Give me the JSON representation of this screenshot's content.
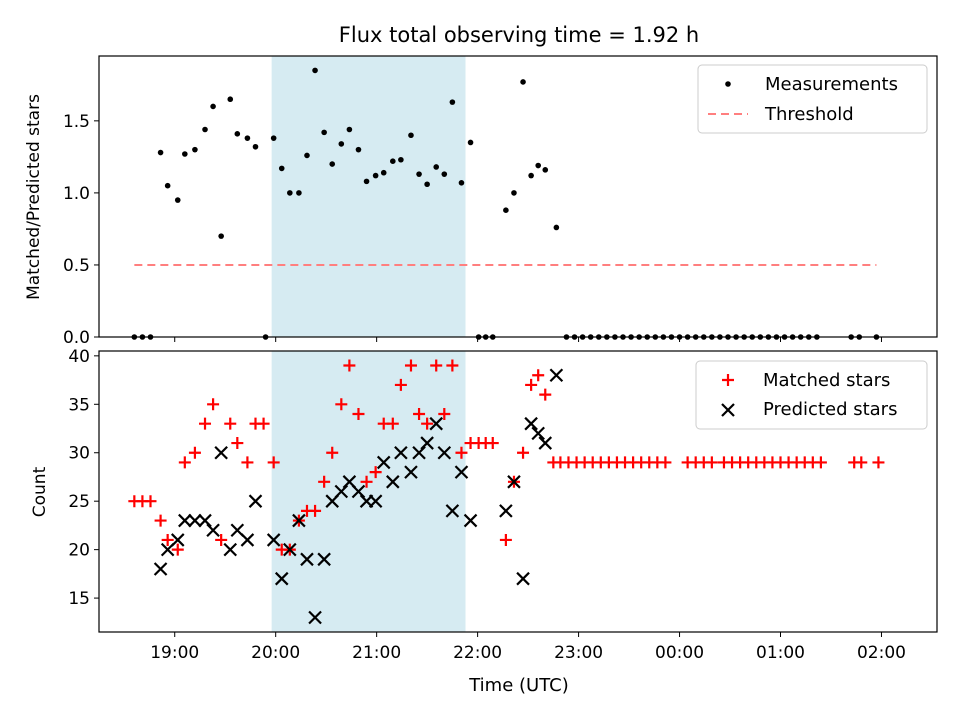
{
  "figure": {
    "title": "Flux total observing time = 1.92 h",
    "xlabel": "Time (UTC)",
    "highlight_color": "#add8e6",
    "highlight_span": [
      19.96,
      21.88
    ]
  },
  "chart_data": [
    {
      "type": "scatter",
      "title": "Flux total observing time = 1.92 h",
      "xlabel": "",
      "ylabel": "Matched/Predicted stars",
      "xlim": [
        18.25,
        26.55
      ],
      "ylim": [
        0,
        1.95
      ],
      "yticks": [
        0.0,
        0.5,
        1.0,
        1.5
      ],
      "ytick_labels": [
        "0.0",
        "0.5",
        "1.0",
        "1.5"
      ],
      "legend_placement": "top-right",
      "legend": [
        {
          "label": "Measurements",
          "marker": "dot",
          "color": "#000000"
        },
        {
          "label": "Threshold",
          "marker": "dashed-line",
          "color": "#ff7f7f"
        }
      ],
      "threshold": {
        "name": "Threshold",
        "value": 0.5,
        "x": [
          18.6,
          25.95
        ],
        "color": "#ff7f7f"
      },
      "series": [
        {
          "name": "Measurements",
          "color": "#000000",
          "points": [
            [
              18.6,
              0
            ],
            [
              18.68,
              0
            ],
            [
              18.76,
              0
            ],
            [
              18.86,
              1.28
            ],
            [
              18.93,
              1.05
            ],
            [
              19.03,
              0.95
            ],
            [
              19.1,
              1.27
            ],
            [
              19.2,
              1.3
            ],
            [
              19.3,
              1.44
            ],
            [
              19.38,
              1.6
            ],
            [
              19.46,
              0.7
            ],
            [
              19.55,
              1.65
            ],
            [
              19.62,
              1.41
            ],
            [
              19.72,
              1.38
            ],
            [
              19.8,
              1.32
            ],
            [
              19.9,
              0
            ],
            [
              19.98,
              1.38
            ],
            [
              20.06,
              1.17
            ],
            [
              20.14,
              1.0
            ],
            [
              20.23,
              1.0
            ],
            [
              20.31,
              1.26
            ],
            [
              20.39,
              1.85
            ],
            [
              20.48,
              1.42
            ],
            [
              20.56,
              1.2
            ],
            [
              20.65,
              1.34
            ],
            [
              20.73,
              1.44
            ],
            [
              20.82,
              1.3
            ],
            [
              20.9,
              1.08
            ],
            [
              20.99,
              1.12
            ],
            [
              21.07,
              1.14
            ],
            [
              21.16,
              1.22
            ],
            [
              21.24,
              1.23
            ],
            [
              21.34,
              1.4
            ],
            [
              21.42,
              1.13
            ],
            [
              21.5,
              1.06
            ],
            [
              21.59,
              1.18
            ],
            [
              21.67,
              1.13
            ],
            [
              21.75,
              1.63
            ],
            [
              21.84,
              1.07
            ],
            [
              21.93,
              1.35
            ],
            [
              22.01,
              0
            ],
            [
              22.08,
              0
            ],
            [
              22.15,
              0
            ],
            [
              22.28,
              0.88
            ],
            [
              22.36,
              1.0
            ],
            [
              22.45,
              1.77
            ],
            [
              22.53,
              1.12
            ],
            [
              22.6,
              1.19
            ],
            [
              22.67,
              1.16
            ],
            [
              22.78,
              0.76
            ],
            [
              22.88,
              0
            ],
            [
              22.96,
              0
            ],
            [
              23.04,
              0
            ],
            [
              23.12,
              0
            ],
            [
              23.2,
              0
            ],
            [
              23.28,
              0
            ],
            [
              23.36,
              0
            ],
            [
              23.44,
              0
            ],
            [
              23.52,
              0
            ],
            [
              23.6,
              0
            ],
            [
              23.68,
              0
            ],
            [
              23.76,
              0
            ],
            [
              23.84,
              0
            ],
            [
              23.92,
              0
            ],
            [
              24.0,
              0
            ],
            [
              24.08,
              0
            ],
            [
              24.16,
              0
            ],
            [
              24.24,
              0
            ],
            [
              24.32,
              0
            ],
            [
              24.4,
              0
            ],
            [
              24.48,
              0
            ],
            [
              24.56,
              0
            ],
            [
              24.64,
              0
            ],
            [
              24.72,
              0
            ],
            [
              24.8,
              0
            ],
            [
              24.88,
              0
            ],
            [
              24.96,
              0
            ],
            [
              25.04,
              0
            ],
            [
              25.12,
              0
            ],
            [
              25.2,
              0
            ],
            [
              25.28,
              0
            ],
            [
              25.36,
              0
            ],
            [
              25.7,
              0
            ],
            [
              25.78,
              0
            ],
            [
              25.95,
              0
            ]
          ]
        }
      ]
    },
    {
      "type": "scatter",
      "title": "",
      "xlabel": "Time (UTC)",
      "ylabel": "Count",
      "xlim": [
        18.25,
        26.55
      ],
      "ylim": [
        11.5,
        40.5
      ],
      "xticks": [
        19,
        20,
        21,
        22,
        23,
        24,
        25,
        26
      ],
      "xtick_labels": [
        "19:00",
        "20:00",
        "21:00",
        "22:00",
        "23:00",
        "00:00",
        "01:00",
        "02:00"
      ],
      "yticks": [
        15,
        20,
        25,
        30,
        35,
        40
      ],
      "ytick_labels": [
        "15",
        "20",
        "25",
        "30",
        "35",
        "40"
      ],
      "legend_placement": "top-right",
      "legend": [
        {
          "label": "Matched stars",
          "marker": "plus",
          "color": "#ff0000"
        },
        {
          "label": "Predicted stars",
          "marker": "x",
          "color": "#000000"
        }
      ],
      "series": [
        {
          "name": "Matched stars",
          "color": "#ff0000",
          "marker": "plus",
          "points": [
            [
              18.6,
              25
            ],
            [
              18.68,
              25
            ],
            [
              18.76,
              25
            ],
            [
              18.86,
              23
            ],
            [
              18.93,
              21
            ],
            [
              19.03,
              20
            ],
            [
              19.1,
              29
            ],
            [
              19.2,
              30
            ],
            [
              19.3,
              33
            ],
            [
              19.38,
              35
            ],
            [
              19.46,
              21
            ],
            [
              19.55,
              33
            ],
            [
              19.62,
              31
            ],
            [
              19.72,
              29
            ],
            [
              19.8,
              33
            ],
            [
              19.88,
              33
            ],
            [
              19.98,
              29
            ],
            [
              20.06,
              20
            ],
            [
              20.14,
              20
            ],
            [
              20.23,
              23
            ],
            [
              20.31,
              24
            ],
            [
              20.39,
              24
            ],
            [
              20.48,
              27
            ],
            [
              20.56,
              30
            ],
            [
              20.65,
              35
            ],
            [
              20.73,
              39
            ],
            [
              20.82,
              34
            ],
            [
              20.9,
              27
            ],
            [
              20.99,
              28
            ],
            [
              21.07,
              33
            ],
            [
              21.16,
              33
            ],
            [
              21.24,
              37
            ],
            [
              21.34,
              39
            ],
            [
              21.42,
              34
            ],
            [
              21.5,
              33
            ],
            [
              21.59,
              39
            ],
            [
              21.67,
              34
            ],
            [
              21.75,
              39
            ],
            [
              21.84,
              30
            ],
            [
              21.93,
              31
            ],
            [
              22.01,
              31
            ],
            [
              22.08,
              31
            ],
            [
              22.15,
              31
            ],
            [
              22.28,
              21
            ],
            [
              22.36,
              27
            ],
            [
              22.45,
              30
            ],
            [
              22.53,
              37
            ],
            [
              22.6,
              38
            ],
            [
              22.67,
              36
            ],
            [
              22.75,
              29
            ],
            [
              22.82,
              29
            ],
            [
              22.9,
              29
            ],
            [
              22.98,
              29
            ],
            [
              23.06,
              29
            ],
            [
              23.14,
              29
            ],
            [
              23.22,
              29
            ],
            [
              23.3,
              29
            ],
            [
              23.38,
              29
            ],
            [
              23.46,
              29
            ],
            [
              23.54,
              29
            ],
            [
              23.62,
              29
            ],
            [
              23.7,
              29
            ],
            [
              23.78,
              29
            ],
            [
              23.86,
              29
            ],
            [
              24.08,
              29
            ],
            [
              24.16,
              29
            ],
            [
              24.24,
              29
            ],
            [
              24.32,
              29
            ],
            [
              24.44,
              29
            ],
            [
              24.52,
              29
            ],
            [
              24.6,
              29
            ],
            [
              24.68,
              29
            ],
            [
              24.76,
              29
            ],
            [
              24.84,
              29
            ],
            [
              24.92,
              29
            ],
            [
              25.0,
              29
            ],
            [
              25.08,
              29
            ],
            [
              25.16,
              29
            ],
            [
              25.24,
              29
            ],
            [
              25.32,
              29
            ],
            [
              25.4,
              29
            ],
            [
              25.73,
              29
            ],
            [
              25.8,
              29
            ],
            [
              25.97,
              29
            ]
          ]
        },
        {
          "name": "Predicted stars",
          "color": "#000000",
          "marker": "x",
          "points": [
            [
              18.86,
              18
            ],
            [
              18.93,
              20
            ],
            [
              19.03,
              21
            ],
            [
              19.1,
              23
            ],
            [
              19.2,
              23
            ],
            [
              19.3,
              23
            ],
            [
              19.38,
              22
            ],
            [
              19.46,
              30
            ],
            [
              19.55,
              20
            ],
            [
              19.62,
              22
            ],
            [
              19.72,
              21
            ],
            [
              19.8,
              25
            ],
            [
              19.98,
              21
            ],
            [
              20.06,
              17
            ],
            [
              20.14,
              20
            ],
            [
              20.23,
              23
            ],
            [
              20.31,
              19
            ],
            [
              20.39,
              13
            ],
            [
              20.48,
              19
            ],
            [
              20.56,
              25
            ],
            [
              20.65,
              26
            ],
            [
              20.73,
              27
            ],
            [
              20.82,
              26
            ],
            [
              20.9,
              25
            ],
            [
              20.99,
              25
            ],
            [
              21.07,
              29
            ],
            [
              21.16,
              27
            ],
            [
              21.24,
              30
            ],
            [
              21.34,
              28
            ],
            [
              21.42,
              30
            ],
            [
              21.5,
              31
            ],
            [
              21.59,
              33
            ],
            [
              21.67,
              30
            ],
            [
              21.75,
              24
            ],
            [
              21.84,
              28
            ],
            [
              21.93,
              23
            ],
            [
              22.28,
              24
            ],
            [
              22.36,
              27
            ],
            [
              22.45,
              17
            ],
            [
              22.53,
              33
            ],
            [
              22.6,
              32
            ],
            [
              22.67,
              31
            ],
            [
              22.78,
              38
            ]
          ]
        }
      ]
    }
  ]
}
